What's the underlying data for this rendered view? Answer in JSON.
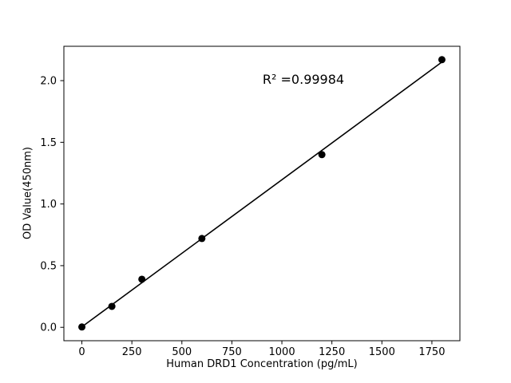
{
  "chart_data": {
    "type": "scatter",
    "title": "",
    "xlabel": "Human DRD1 Concentration (pg/mL)",
    "ylabel": "OD Value(450nm)",
    "annotation": "R² =0.99984",
    "x": [
      0,
      150,
      300,
      600,
      1200,
      1800
    ],
    "y": [
      0.003,
      0.17,
      0.39,
      0.72,
      1.4,
      2.17
    ],
    "fit_line": true,
    "xlim": [
      -90,
      1890
    ],
    "ylim": [
      -0.1085,
      2.2785
    ],
    "xticks": [
      0,
      250,
      500,
      750,
      1000,
      1250,
      1500,
      1750
    ],
    "yticks": [
      0.0,
      0.5,
      1.0,
      1.5,
      2.0
    ],
    "grid": false,
    "legend_position": "none",
    "marker_color": "#000000",
    "line_color": "#000000",
    "background_color": "#ffffff"
  }
}
